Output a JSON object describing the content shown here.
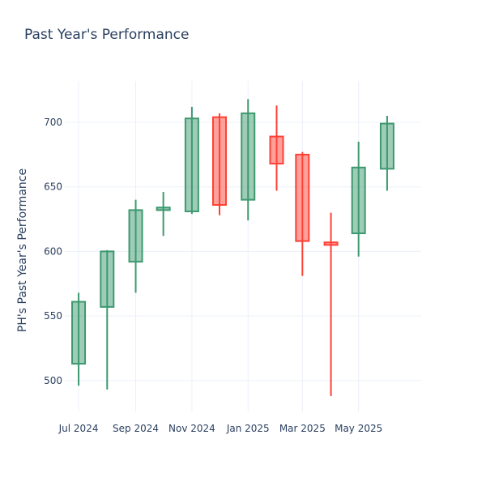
{
  "chart_data": {
    "type": "candlestick",
    "title": "Past Year's Performance",
    "xlabel": "",
    "ylabel": "PH's Past Year's Performance",
    "ylim": [
      476,
      732
    ],
    "x_range": [
      "2024-06-16",
      "2025-07-08"
    ],
    "yticks": [
      500,
      550,
      600,
      650,
      700
    ],
    "xticks": [
      {
        "date": "2024-07-01",
        "label": "Jul 2024"
      },
      {
        "date": "2024-09-01",
        "label": "Sep 2024"
      },
      {
        "date": "2024-11-01",
        "label": "Nov 2024"
      },
      {
        "date": "2025-01-01",
        "label": "Jan 2025"
      },
      {
        "date": "2025-03-01",
        "label": "Mar 2025"
      },
      {
        "date": "2025-05-01",
        "label": "May 2025"
      }
    ],
    "increasing_color": "#3d9970",
    "increasing_fill": "rgba(61,153,112,0.5)",
    "decreasing_color": "#ff4136",
    "decreasing_fill": "rgba(255,65,54,0.5)",
    "grid": true,
    "candles": [
      {
        "date": "2024-07-01",
        "open": 513,
        "high": 568,
        "low": 496,
        "close": 561
      },
      {
        "date": "2024-08-01",
        "open": 557,
        "high": 601,
        "low": 493,
        "close": 600
      },
      {
        "date": "2024-09-01",
        "open": 592,
        "high": 640,
        "low": 568,
        "close": 632
      },
      {
        "date": "2024-10-01",
        "open": 632,
        "high": 646,
        "low": 612,
        "close": 634
      },
      {
        "date": "2024-11-01",
        "open": 631,
        "high": 712,
        "low": 629,
        "close": 703
      },
      {
        "date": "2024-12-01",
        "open": 704,
        "high": 707,
        "low": 628,
        "close": 636
      },
      {
        "date": "2025-01-01",
        "open": 640,
        "high": 718,
        "low": 624,
        "close": 707
      },
      {
        "date": "2025-02-01",
        "open": 689,
        "high": 713,
        "low": 647,
        "close": 668
      },
      {
        "date": "2025-03-01",
        "open": 675,
        "high": 677,
        "low": 581,
        "close": 608
      },
      {
        "date": "2025-04-01",
        "open": 607,
        "high": 630,
        "low": 488,
        "close": 605
      },
      {
        "date": "2025-05-01",
        "open": 614,
        "high": 685,
        "low": 596,
        "close": 665
      },
      {
        "date": "2025-06-01",
        "open": 664,
        "high": 705,
        "low": 647,
        "close": 699
      }
    ]
  }
}
